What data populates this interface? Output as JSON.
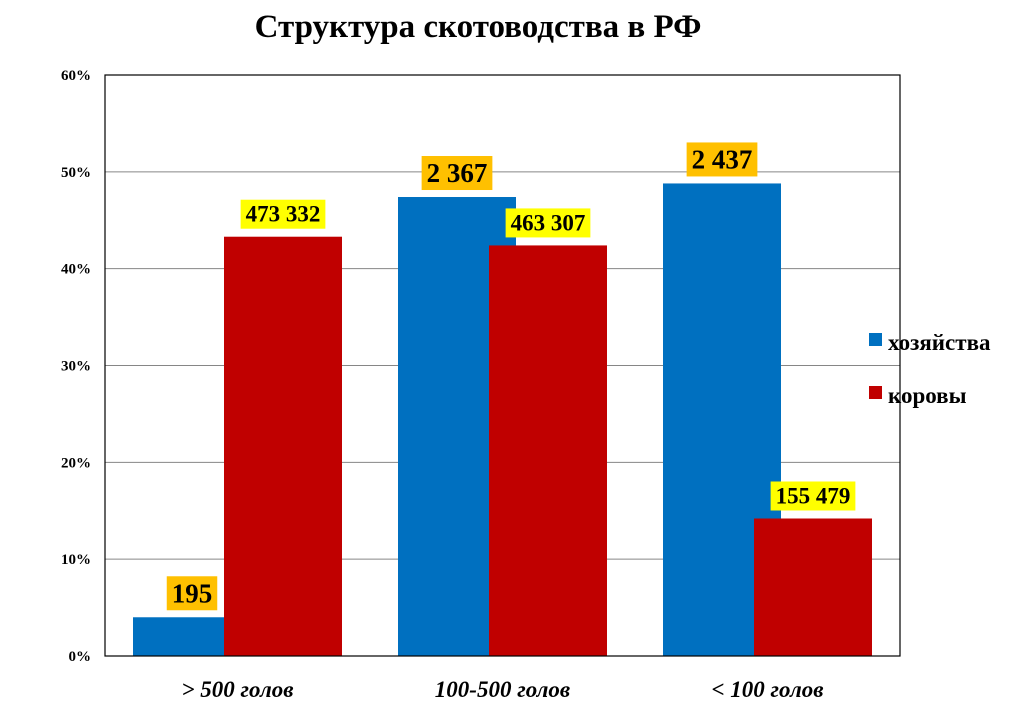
{
  "chart_data": {
    "type": "bar",
    "title": "Структура  скотоводства в  РФ",
    "categories": [
      "> 500 голов",
      "100-500 голов",
      "< 100 голов"
    ],
    "series": [
      {
        "name": "хозяйства",
        "color": "#0070C0",
        "label_bg": "#FFC000",
        "values": [
          4.0,
          47.4,
          48.8
        ],
        "labels": [
          "195",
          "2 367",
          "2 437"
        ]
      },
      {
        "name": "коровы",
        "color": "#C00000",
        "label_bg": "#FFFF00",
        "values": [
          43.3,
          42.4,
          14.2
        ],
        "labels": [
          "473 332",
          "463 307",
          "155 479"
        ]
      }
    ],
    "ylim": [
      0,
      60
    ],
    "yticks": [
      "0%",
      "10%",
      "20%",
      "30%",
      "40%",
      "50%",
      "60%"
    ],
    "grid": true,
    "legend": "right",
    "xlabel": "",
    "ylabel": ""
  }
}
